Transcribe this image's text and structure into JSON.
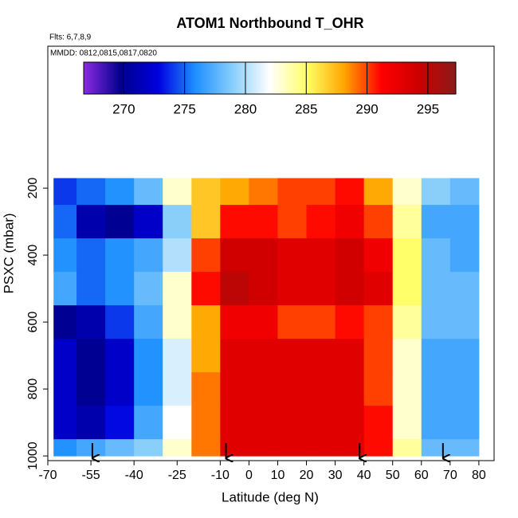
{
  "chart_data": {
    "type": "heatmap",
    "title": "ATOM1 Northbound T_OHR",
    "subtitle": "Flts: 6,7,8,9",
    "annotation": "MMDD: 0812,0815,0817,0820",
    "x_label": "Latitude (deg N)",
    "y_label": "PSXC (mbar)",
    "xlim": [
      -70,
      85.3
    ],
    "ylim": [
      1014,
      -224
    ],
    "xticks": [
      -70,
      -55,
      -40,
      -25,
      -10,
      0,
      10,
      20,
      30,
      40,
      50,
      60,
      70,
      80
    ],
    "yticks": [
      200,
      400,
      600,
      800,
      1000
    ],
    "x_bins": [
      -68,
      -60,
      -50,
      -40,
      -30,
      -20,
      -10,
      0,
      10,
      20,
      30,
      40,
      50,
      60,
      70,
      80
    ],
    "y_bins": [
      170,
      250,
      350,
      450,
      550,
      650,
      750,
      850,
      950,
      1000
    ],
    "values": [
      [
        274,
        275,
        276,
        278,
        283,
        287,
        288,
        289,
        290,
        290,
        291,
        288,
        283,
        279,
        278
      ],
      [
        275,
        271,
        270,
        272,
        279,
        287,
        291,
        291,
        290,
        291,
        292,
        290,
        284,
        277,
        277
      ],
      [
        276,
        275,
        276,
        277,
        280,
        290,
        294,
        294,
        293,
        293,
        294,
        292,
        285,
        278,
        277
      ],
      [
        277,
        275,
        276,
        278,
        283,
        291,
        295,
        294,
        293,
        293,
        294,
        293,
        285,
        278,
        278
      ],
      [
        270,
        271,
        274,
        277,
        283,
        288,
        292,
        292,
        290,
        290,
        291,
        290,
        284,
        278,
        278
      ],
      [
        272,
        270,
        272,
        276,
        281,
        288,
        293,
        293,
        293,
        293,
        293,
        290,
        283,
        277,
        277
      ],
      [
        272,
        270,
        272,
        276,
        281,
        289,
        293,
        293,
        293,
        293,
        293,
        290,
        283,
        277,
        277
      ],
      [
        272,
        271,
        273,
        277,
        282,
        289,
        293,
        293,
        293,
        293,
        293,
        291,
        283,
        277,
        277
      ],
      [
        276,
        277,
        278,
        279,
        283,
        289,
        293,
        293,
        293,
        293,
        293,
        291,
        284,
        278,
        278
      ]
    ],
    "clim": [
      266.7,
      297.3
    ],
    "cticks": [
      270,
      275,
      280,
      285,
      290,
      295
    ],
    "colormap": [
      "#8a2be2",
      "#00008b",
      "#0000e0",
      "#1e90ff",
      "#87cefa",
      "#ffffff",
      "#ffff66",
      "#ffa500",
      "#ff0000",
      "#cc0000",
      "#8b1a1a"
    ],
    "arrows": [
      -54.5,
      -8,
      38.5,
      67.5
    ]
  }
}
